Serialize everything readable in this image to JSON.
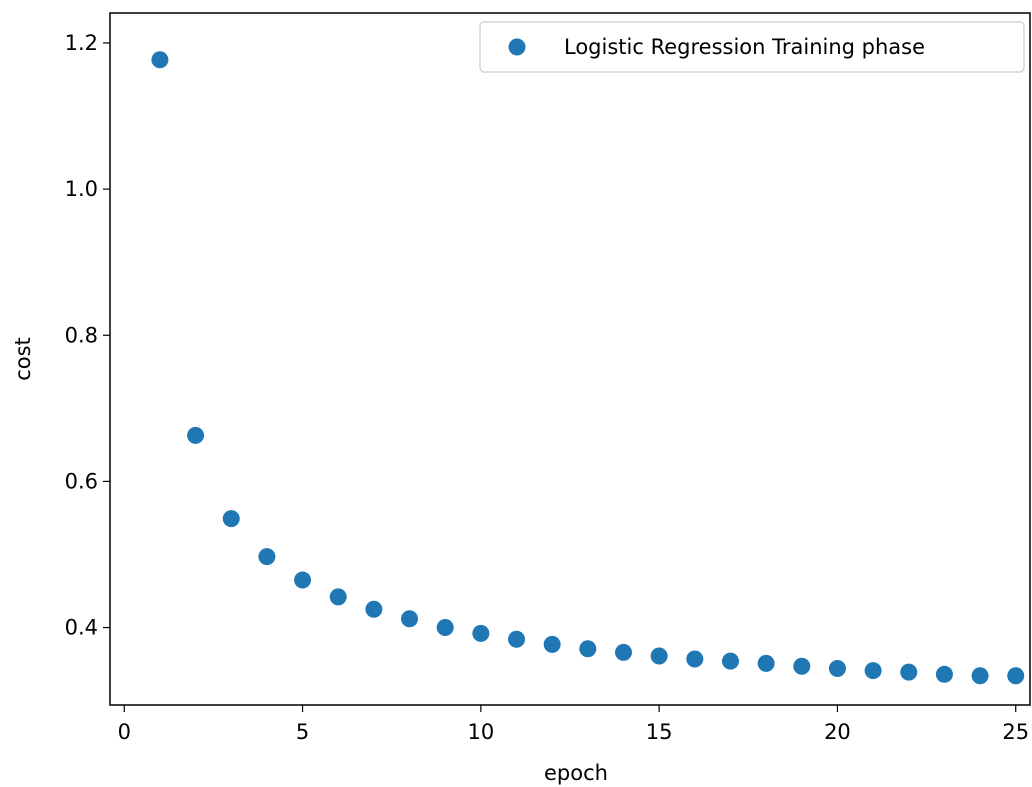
{
  "chart_data": {
    "type": "scatter",
    "title": "",
    "xlabel": "epoch",
    "ylabel": "cost",
    "xlim": [
      -0.4,
      25.4
    ],
    "ylim": [
      0.294,
      1.241
    ],
    "xticks": [
      0,
      5,
      10,
      15,
      20,
      25
    ],
    "xtick_labels": [
      "0",
      "5",
      "10",
      "15",
      "20",
      "25"
    ],
    "yticks": [
      0.4,
      0.6,
      0.8,
      1.0,
      1.2
    ],
    "ytick_labels": [
      "0.4",
      "0.6",
      "0.8",
      "1.0",
      "1.2"
    ],
    "grid": false,
    "legend_position": "upper right",
    "series": [
      {
        "name": "Logistic Regression Training phase",
        "color": "#1f77b4",
        "marker": "circle",
        "x": [
          1,
          2,
          3,
          4,
          5,
          6,
          7,
          8,
          9,
          10,
          11,
          12,
          13,
          14,
          15,
          16,
          17,
          18,
          19,
          20,
          21,
          22,
          23,
          24,
          25
        ],
        "y": [
          1.177,
          0.663,
          0.549,
          0.497,
          0.465,
          0.442,
          0.425,
          0.412,
          0.4,
          0.392,
          0.384,
          0.377,
          0.371,
          0.366,
          0.361,
          0.357,
          0.354,
          0.351,
          0.347,
          0.344,
          0.341,
          0.339,
          0.336,
          0.334,
          0.334
        ]
      }
    ]
  }
}
